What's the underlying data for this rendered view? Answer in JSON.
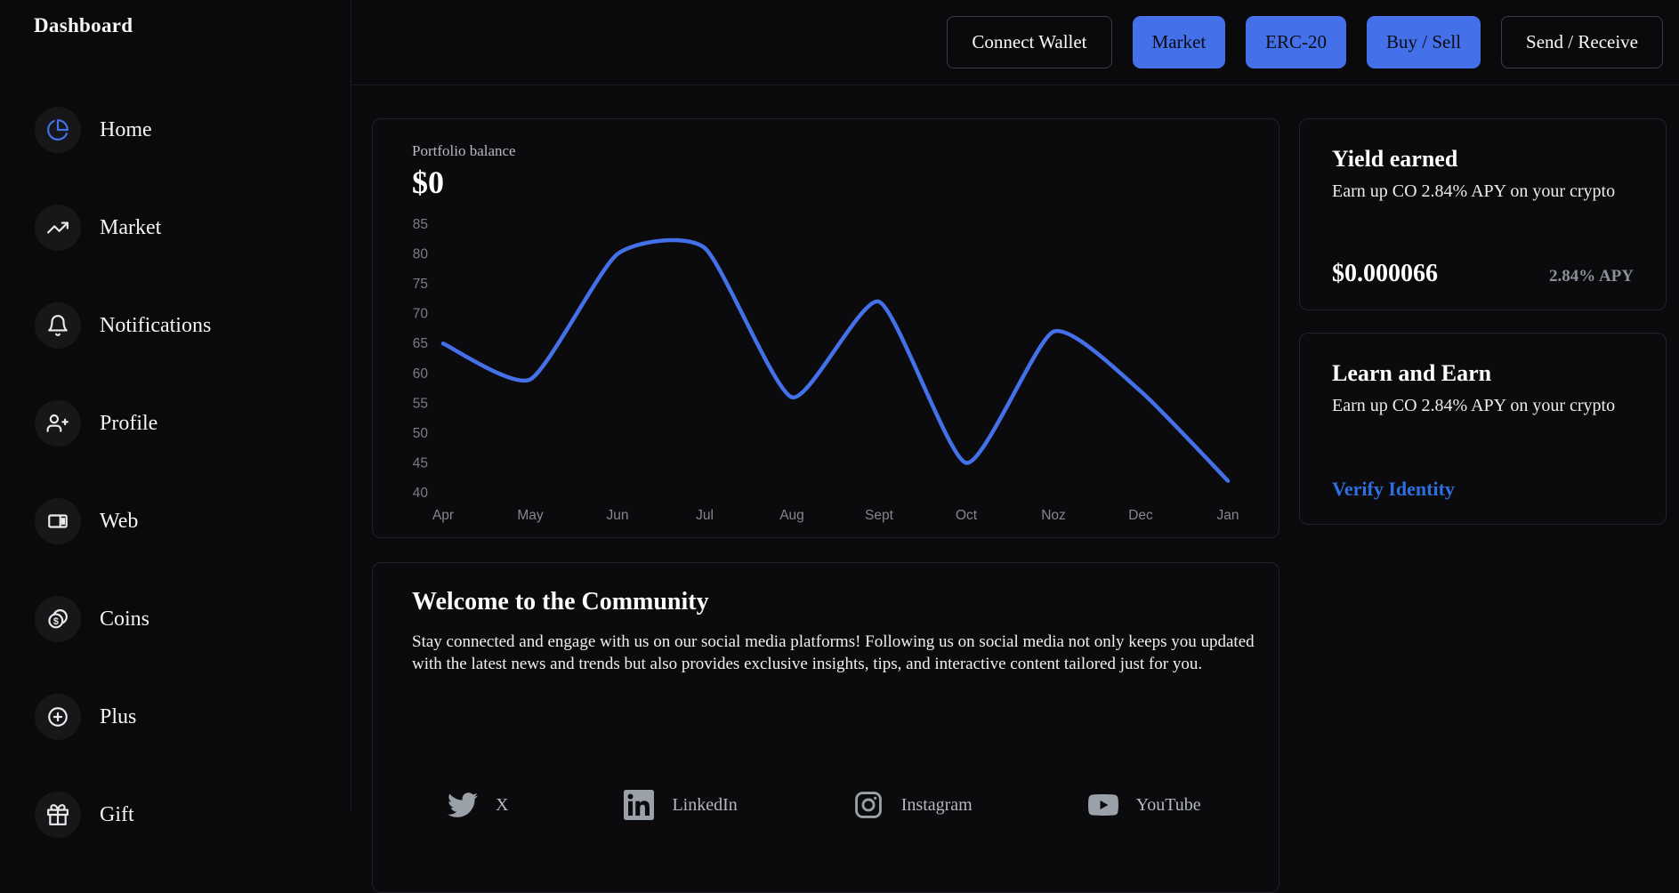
{
  "app": {
    "title": "Dashboard"
  },
  "sidebar": {
    "items": [
      {
        "label": "Home",
        "icon": "pie-chart-icon",
        "accent": true
      },
      {
        "label": "Market",
        "icon": "trending-up-icon",
        "accent": false
      },
      {
        "label": "Notifications",
        "icon": "bell-icon",
        "accent": false
      },
      {
        "label": "Profile",
        "icon": "user-plus-icon",
        "accent": false
      },
      {
        "label": "Web",
        "icon": "browser-icon",
        "accent": false
      },
      {
        "label": "Coins",
        "icon": "coins-icon",
        "accent": false
      },
      {
        "label": "Plus",
        "icon": "plus-circle-icon",
        "accent": false
      },
      {
        "label": "Gift",
        "icon": "gift-icon",
        "accent": false
      }
    ]
  },
  "header": {
    "buttons": [
      {
        "label": "Connect Wallet",
        "variant": "outline"
      },
      {
        "label": "Market",
        "variant": "primary"
      },
      {
        "label": "ERC-20",
        "variant": "primary"
      },
      {
        "label": "Buy / Sell",
        "variant": "primary"
      },
      {
        "label": "Send / Receive",
        "variant": "outline"
      }
    ]
  },
  "portfolio": {
    "label": "Portfolio balance",
    "balance": "$0"
  },
  "chart_data": {
    "type": "line",
    "title": "Portfolio balance",
    "x": [
      "Apr",
      "May",
      "Jun",
      "Jul",
      "Aug",
      "Sept",
      "Oct",
      "Noz",
      "Dec",
      "Jan"
    ],
    "series": [
      {
        "name": "Portfolio balance",
        "values": [
          65,
          59,
          80,
          81,
          56,
          72,
          45,
          67,
          57,
          42
        ]
      }
    ],
    "ylim": [
      40,
      85
    ],
    "ytick_step": 5,
    "grid": false,
    "legend": false,
    "line_color": "#4470ea",
    "tick_color": "#7b7d82"
  },
  "yield_card": {
    "title": "Yield earned",
    "subtitle": "Earn up CO 2.84% APY on your crypto",
    "amount": "$0.000066",
    "apy": "2.84% APY"
  },
  "learn_card": {
    "title": "Learn and Earn",
    "subtitle": "Earn up CO 2.84% APY on your crypto",
    "link": "Verify Identity"
  },
  "community": {
    "title": "Welcome to the Community",
    "body": "Stay connected and engage with us on our social media platforms! Following us on social media not only keeps you updated with the latest news and trends but also provides exclusive insights, tips, and interactive content tailored just for you.",
    "socials": [
      {
        "label": "X",
        "icon": "twitter-icon"
      },
      {
        "label": "LinkedIn",
        "icon": "linkedin-icon"
      },
      {
        "label": "Instagram",
        "icon": "instagram-icon"
      },
      {
        "label": "YouTube",
        "icon": "youtube-icon"
      }
    ]
  },
  "colors": {
    "accent": "#4470ea",
    "link": "#2f6fe0",
    "background": "#0a0a0c"
  }
}
